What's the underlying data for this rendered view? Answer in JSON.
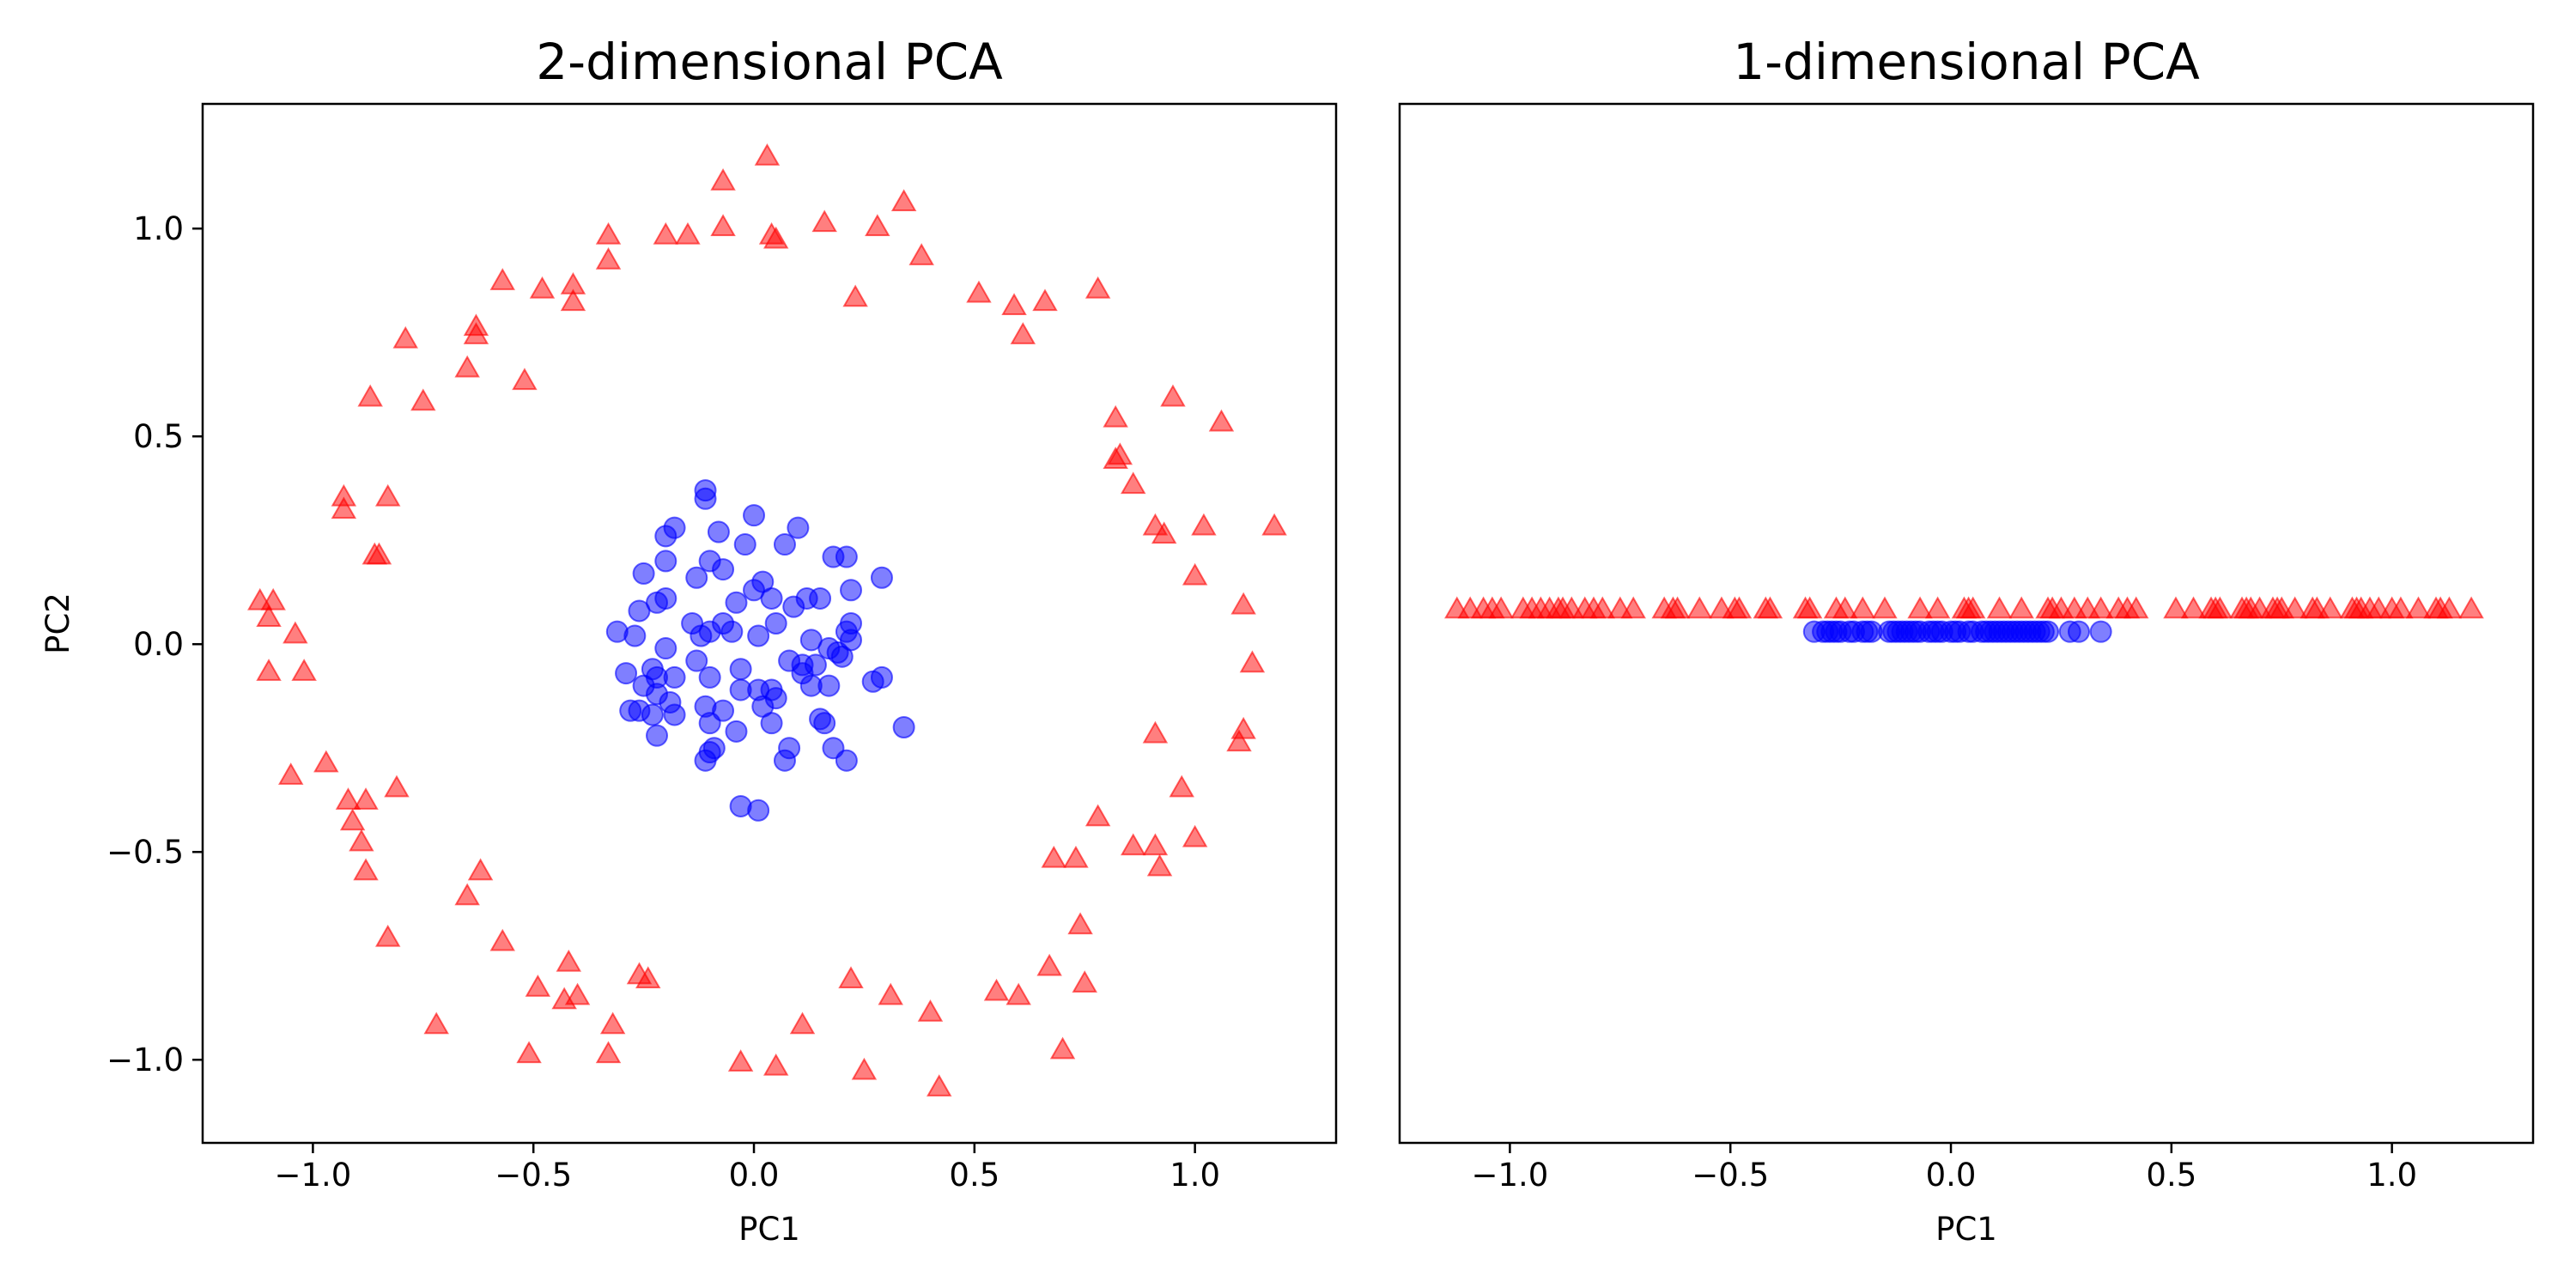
{
  "colors": {
    "class_ring": "#ff0000",
    "class_core": "#0000ff"
  },
  "chart_data": [
    {
      "type": "scatter",
      "title": "2-dimensional PCA",
      "xlabel": "PC1",
      "ylabel": "PC2",
      "xlim": [
        -1.25,
        1.32
      ],
      "ylim": [
        -1.2,
        1.3
      ],
      "xticks": [
        -1.0,
        -0.5,
        0.0,
        0.5,
        1.0
      ],
      "xtick_labels": [
        "−1.0",
        "−0.5",
        "0.0",
        "0.5",
        "1.0"
      ],
      "yticks": [
        -1.0,
        -0.5,
        0.0,
        0.5,
        1.0
      ],
      "ytick_labels": [
        "−1.0",
        "−0.5",
        "0.0",
        "0.5",
        "1.0"
      ],
      "grid": false,
      "series": [
        {
          "marker": "triangle",
          "color": "#ff0000",
          "points": [
            [
              0.03,
              1.17
            ],
            [
              -0.07,
              1.11
            ],
            [
              0.34,
              1.06
            ],
            [
              0.16,
              1.01
            ],
            [
              0.28,
              1.0
            ],
            [
              -0.07,
              1.0
            ],
            [
              0.04,
              0.98
            ],
            [
              0.05,
              0.97
            ],
            [
              -0.15,
              0.98
            ],
            [
              -0.2,
              0.98
            ],
            [
              -0.33,
              0.98
            ],
            [
              -0.33,
              0.92
            ],
            [
              0.38,
              0.93
            ],
            [
              -0.41,
              0.86
            ],
            [
              -0.41,
              0.82
            ],
            [
              -0.48,
              0.85
            ],
            [
              -0.57,
              0.87
            ],
            [
              0.51,
              0.84
            ],
            [
              0.59,
              0.81
            ],
            [
              0.66,
              0.82
            ],
            [
              0.78,
              0.85
            ],
            [
              0.61,
              0.74
            ],
            [
              0.23,
              0.83
            ],
            [
              -0.79,
              0.73
            ],
            [
              -0.63,
              0.76
            ],
            [
              -0.63,
              0.74
            ],
            [
              -0.65,
              0.66
            ],
            [
              -0.52,
              0.63
            ],
            [
              -0.87,
              0.59
            ],
            [
              -0.75,
              0.58
            ],
            [
              0.95,
              0.59
            ],
            [
              0.82,
              0.54
            ],
            [
              1.06,
              0.53
            ],
            [
              0.82,
              0.44
            ],
            [
              0.83,
              0.45
            ],
            [
              0.86,
              0.38
            ],
            [
              -0.83,
              0.35
            ],
            [
              -0.93,
              0.35
            ],
            [
              -0.93,
              0.32
            ],
            [
              0.91,
              0.28
            ],
            [
              1.18,
              0.28
            ],
            [
              0.93,
              0.26
            ],
            [
              1.02,
              0.28
            ],
            [
              -0.86,
              0.21
            ],
            [
              -0.85,
              0.21
            ],
            [
              1.0,
              0.16
            ],
            [
              -1.12,
              0.1
            ],
            [
              -1.09,
              0.1
            ],
            [
              -1.1,
              0.06
            ],
            [
              -1.04,
              0.02
            ],
            [
              1.11,
              0.09
            ],
            [
              1.13,
              -0.05
            ],
            [
              -1.1,
              -0.07
            ],
            [
              -1.02,
              -0.07
            ],
            [
              0.91,
              -0.22
            ],
            [
              1.11,
              -0.21
            ],
            [
              1.1,
              -0.24
            ],
            [
              -0.97,
              -0.29
            ],
            [
              -1.05,
              -0.32
            ],
            [
              -0.92,
              -0.38
            ],
            [
              -0.88,
              -0.38
            ],
            [
              -0.81,
              -0.35
            ],
            [
              0.97,
              -0.35
            ],
            [
              0.78,
              -0.42
            ],
            [
              -0.91,
              -0.43
            ],
            [
              -0.89,
              -0.48
            ],
            [
              0.86,
              -0.49
            ],
            [
              0.91,
              -0.49
            ],
            [
              1.0,
              -0.47
            ],
            [
              0.92,
              -0.54
            ],
            [
              -0.88,
              -0.55
            ],
            [
              -0.62,
              -0.55
            ],
            [
              -0.65,
              -0.61
            ],
            [
              0.68,
              -0.52
            ],
            [
              0.73,
              -0.52
            ],
            [
              -0.83,
              -0.71
            ],
            [
              -0.57,
              -0.72
            ],
            [
              0.74,
              -0.68
            ],
            [
              0.55,
              -0.84
            ],
            [
              0.6,
              -0.85
            ],
            [
              0.67,
              -0.78
            ],
            [
              0.75,
              -0.82
            ],
            [
              -0.42,
              -0.77
            ],
            [
              -0.49,
              -0.83
            ],
            [
              -0.43,
              -0.86
            ],
            [
              -0.4,
              -0.85
            ],
            [
              -0.26,
              -0.8
            ],
            [
              -0.24,
              -0.81
            ],
            [
              0.22,
              -0.81
            ],
            [
              0.31,
              -0.85
            ],
            [
              0.4,
              -0.89
            ],
            [
              -0.72,
              -0.92
            ],
            [
              -0.32,
              -0.92
            ],
            [
              0.11,
              -0.92
            ],
            [
              0.7,
              -0.98
            ],
            [
              -0.51,
              -0.99
            ],
            [
              -0.33,
              -0.99
            ],
            [
              -0.03,
              -1.01
            ],
            [
              0.05,
              -1.02
            ],
            [
              0.25,
              -1.03
            ],
            [
              0.42,
              -1.07
            ]
          ]
        },
        {
          "marker": "circle",
          "color": "#0000ff",
          "points": [
            [
              -0.11,
              0.37
            ],
            [
              -0.11,
              0.35
            ],
            [
              0.0,
              0.31
            ],
            [
              0.1,
              0.28
            ],
            [
              -0.18,
              0.28
            ],
            [
              -0.2,
              0.26
            ],
            [
              -0.08,
              0.27
            ],
            [
              -0.02,
              0.24
            ],
            [
              0.07,
              0.24
            ],
            [
              0.18,
              0.21
            ],
            [
              0.21,
              0.21
            ],
            [
              -0.2,
              0.2
            ],
            [
              -0.1,
              0.2
            ],
            [
              -0.07,
              0.18
            ],
            [
              -0.25,
              0.17
            ],
            [
              -0.13,
              0.16
            ],
            [
              0.02,
              0.15
            ],
            [
              0.0,
              0.13
            ],
            [
              0.29,
              0.16
            ],
            [
              -0.22,
              0.1
            ],
            [
              -0.2,
              0.11
            ],
            [
              -0.04,
              0.1
            ],
            [
              0.04,
              0.11
            ],
            [
              0.12,
              0.11
            ],
            [
              0.15,
              0.11
            ],
            [
              0.22,
              0.13
            ],
            [
              0.09,
              0.09
            ],
            [
              -0.26,
              0.08
            ],
            [
              -0.14,
              0.05
            ],
            [
              -0.07,
              0.05
            ],
            [
              0.05,
              0.05
            ],
            [
              0.22,
              0.05
            ],
            [
              0.21,
              0.03
            ],
            [
              0.22,
              0.01
            ],
            [
              -0.31,
              0.03
            ],
            [
              -0.27,
              0.02
            ],
            [
              -0.1,
              0.03
            ],
            [
              -0.12,
              0.02
            ],
            [
              -0.05,
              0.03
            ],
            [
              0.01,
              0.02
            ],
            [
              0.13,
              0.01
            ],
            [
              -0.2,
              -0.01
            ],
            [
              0.17,
              -0.01
            ],
            [
              0.2,
              -0.03
            ],
            [
              0.19,
              -0.02
            ],
            [
              0.08,
              -0.04
            ],
            [
              -0.23,
              -0.06
            ],
            [
              -0.13,
              -0.04
            ],
            [
              -0.03,
              -0.06
            ],
            [
              -0.29,
              -0.07
            ],
            [
              -0.22,
              -0.08
            ],
            [
              -0.18,
              -0.08
            ],
            [
              -0.1,
              -0.08
            ],
            [
              0.11,
              -0.05
            ],
            [
              0.14,
              -0.05
            ],
            [
              0.11,
              -0.07
            ],
            [
              0.27,
              -0.09
            ],
            [
              0.29,
              -0.08
            ],
            [
              -0.25,
              -0.1
            ],
            [
              -0.03,
              -0.11
            ],
            [
              0.04,
              -0.11
            ],
            [
              0.13,
              -0.1
            ],
            [
              0.01,
              -0.11
            ],
            [
              0.17,
              -0.1
            ],
            [
              -0.22,
              -0.12
            ],
            [
              -0.28,
              -0.16
            ],
            [
              -0.26,
              -0.16
            ],
            [
              -0.19,
              -0.14
            ],
            [
              -0.23,
              -0.17
            ],
            [
              -0.11,
              -0.15
            ],
            [
              -0.07,
              -0.16
            ],
            [
              -0.18,
              -0.17
            ],
            [
              0.05,
              -0.13
            ],
            [
              0.02,
              -0.15
            ],
            [
              0.15,
              -0.18
            ],
            [
              0.16,
              -0.19
            ],
            [
              -0.22,
              -0.22
            ],
            [
              -0.1,
              -0.19
            ],
            [
              0.04,
              -0.19
            ],
            [
              -0.04,
              -0.21
            ],
            [
              0.34,
              -0.2
            ],
            [
              -0.09,
              -0.25
            ],
            [
              -0.1,
              -0.26
            ],
            [
              -0.11,
              -0.28
            ],
            [
              0.08,
              -0.25
            ],
            [
              0.18,
              -0.25
            ],
            [
              0.21,
              -0.28
            ],
            [
              0.07,
              -0.28
            ],
            [
              -0.03,
              -0.39
            ],
            [
              0.01,
              -0.4
            ]
          ]
        }
      ]
    },
    {
      "type": "scatter",
      "title": "1-dimensional PCA",
      "xlabel": "PC1",
      "xlim": [
        -1.25,
        1.32
      ],
      "xticks": [
        -1.0,
        -0.5,
        0.0,
        0.5,
        1.0
      ],
      "xtick_labels": [
        "−1.0",
        "−0.5",
        "0.0",
        "0.5",
        "1.0"
      ],
      "yaxis_visible": false,
      "grid": false,
      "series": [
        {
          "marker": "triangle",
          "color": "#ff0000",
          "y": 0.08,
          "x": [
            -1.12,
            -1.09,
            -1.06,
            -1.04,
            -1.02,
            -0.97,
            -0.95,
            -0.93,
            -0.91,
            -0.89,
            -0.88,
            -0.86,
            -0.83,
            -0.81,
            -0.79,
            -0.75,
            -0.72,
            -0.65,
            -0.63,
            -0.62,
            -0.57,
            -0.52,
            -0.49,
            -0.48,
            -0.42,
            -0.41,
            -0.33,
            -0.32,
            -0.26,
            -0.24,
            -0.2,
            -0.15,
            -0.07,
            -0.03,
            0.03,
            0.04,
            0.05,
            0.11,
            0.16,
            0.22,
            0.23,
            0.25,
            0.28,
            0.31,
            0.34,
            0.38,
            0.4,
            0.42,
            0.51,
            0.55,
            0.59,
            0.6,
            0.61,
            0.66,
            0.67,
            0.68,
            0.7,
            0.73,
            0.74,
            0.75,
            0.78,
            0.82,
            0.83,
            0.86,
            0.91,
            0.92,
            0.93,
            0.95,
            0.97,
            1.0,
            1.02,
            1.06,
            1.1,
            1.11,
            1.13,
            1.18
          ]
        },
        {
          "marker": "circle",
          "color": "#0000ff",
          "y": 0.03,
          "x": [
            -0.31,
            -0.29,
            -0.28,
            -0.27,
            -0.26,
            -0.25,
            -0.23,
            -0.22,
            -0.2,
            -0.19,
            -0.18,
            -0.14,
            -0.13,
            -0.12,
            -0.11,
            -0.1,
            -0.09,
            -0.08,
            -0.07,
            -0.05,
            -0.04,
            -0.03,
            -0.02,
            0.0,
            0.01,
            0.02,
            0.04,
            0.05,
            0.07,
            0.08,
            0.09,
            0.1,
            0.11,
            0.12,
            0.13,
            0.14,
            0.15,
            0.16,
            0.17,
            0.18,
            0.19,
            0.2,
            0.21,
            0.22,
            0.27,
            0.29,
            0.34
          ]
        }
      ]
    }
  ]
}
